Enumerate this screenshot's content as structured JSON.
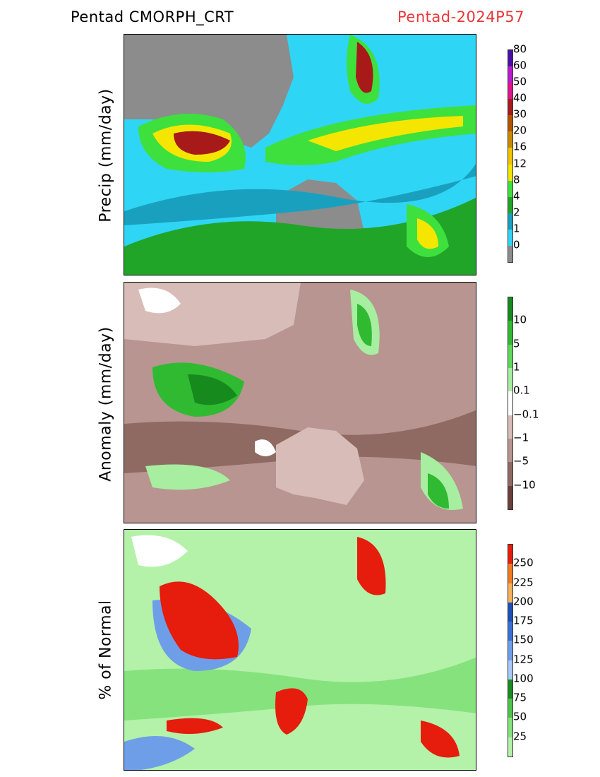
{
  "header": {
    "title_left": "Pentad CMORPH_CRT",
    "title_right": "Pentad-2024P57",
    "title_right_color": "#e8383a"
  },
  "panels": [
    {
      "id": "precip",
      "label": "Precip (mm/day)",
      "colorbar": {
        "colors": [
          "#8c8c8c",
          "#2fd5f5",
          "#1aa0bf",
          "#21a529",
          "#3ee03e",
          "#f5e600",
          "#f2c400",
          "#c98a00",
          "#b25400",
          "#a81a1a",
          "#e0148c",
          "#b91ccc",
          "#4a0fa8"
        ],
        "ticks": [
          "0",
          "1",
          "2",
          "4",
          "8",
          "12",
          "16",
          "20",
          "30",
          "40",
          "50",
          "60",
          "80"
        ]
      },
      "map_palette": {
        "land_bg": "#8c8c8c",
        "ocean": "#2fd5f5",
        "light": "#1aa0bf",
        "green": "#21a529",
        "lime": "#3ee03e",
        "yellow": "#f5e600",
        "orange": "#c98a00",
        "red": "#a81a1a",
        "magenta": "#e0148c"
      }
    },
    {
      "id": "anomaly",
      "label": "Anomaly (mm/day)",
      "colorbar": {
        "colors": [
          "#6a3f38",
          "#8f6a63",
          "#b89591",
          "#d8bcb8",
          "#ffffff",
          "#a7eea0",
          "#5fd95a",
          "#2fba32",
          "#178a1e"
        ],
        "ticks": [
          "−10",
          "−5",
          "−1",
          "−0.1",
          "0.1",
          "1",
          "5",
          "10"
        ]
      },
      "map_palette": {
        "base": "#b89591",
        "dark": "#8f6a63",
        "pale": "#d8bcb8",
        "white": "#ffffff",
        "lgreen": "#a7eea0",
        "green": "#2fba32",
        "dgreen": "#178a1e"
      }
    },
    {
      "id": "percent",
      "label": "% of Normal",
      "colorbar": {
        "colors": [
          "#b3f2a8",
          "#86e27d",
          "#4cc64a",
          "#1a8a24",
          "#a8c8f5",
          "#6f9ee8",
          "#3a6fd8",
          "#1d4fb8",
          "#f5b25a",
          "#f27b20",
          "#e61c0c"
        ],
        "ticks": [
          "25",
          "50",
          "75",
          "100",
          "125",
          "150",
          "175",
          "200",
          "225",
          "250"
        ]
      },
      "map_palette": {
        "base": "#b3f2a8",
        "mid": "#86e27d",
        "blue": "#6f9ee8",
        "dblue": "#3a6fd8",
        "red": "#e61c0c",
        "orange": "#f27b20",
        "white": "#ffffff"
      }
    }
  ],
  "map_outline_color": "#000000"
}
